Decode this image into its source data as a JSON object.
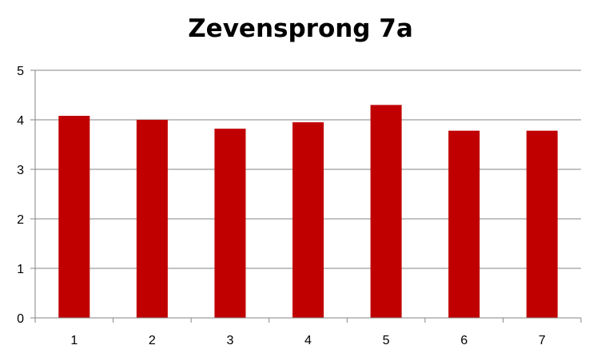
{
  "chart_data": {
    "type": "bar",
    "title": "Zevensprong 7a",
    "categories": [
      "1",
      "2",
      "3",
      "4",
      "5",
      "6",
      "7"
    ],
    "values": [
      4.08,
      4.0,
      3.82,
      3.95,
      4.3,
      3.78,
      3.78
    ],
    "xlabel": "",
    "ylabel": "",
    "ylim": [
      0,
      5
    ],
    "yticks": [
      "0",
      "1",
      "2",
      "3",
      "4",
      "5"
    ],
    "grid": true,
    "legend": "none",
    "bar_color": "#C00000",
    "grid_color": "#868686"
  }
}
